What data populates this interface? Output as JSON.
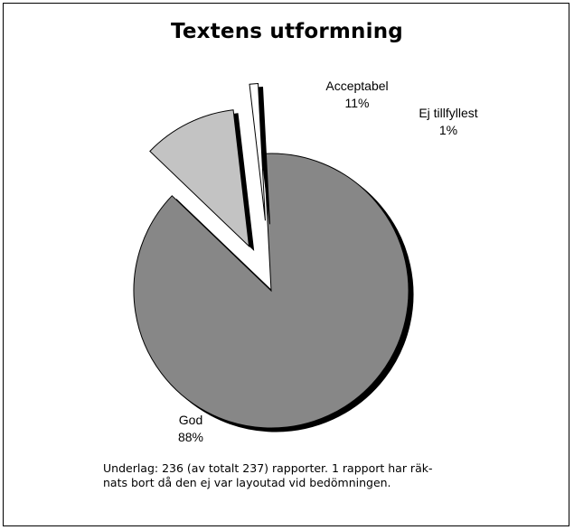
{
  "chart_data": {
    "type": "pie",
    "title": "Textens utformning",
    "slices": [
      {
        "label": "God",
        "value": 88,
        "value_label": "88%",
        "color": "#878787",
        "exploded": false
      },
      {
        "label": "Acceptabel",
        "value": 11,
        "value_label": "11%",
        "color": "#c3c3c3",
        "exploded": true
      },
      {
        "label": "Ej tillfyllest",
        "value": 1,
        "value_label": "1%",
        "color": "#ffffff",
        "exploded": true
      }
    ],
    "style": "3d-shadow, exploded minor slices",
    "legend": "none (direct labels)"
  },
  "footnote_lines": [
    "Underlag: 236 (av totalt 237) rapporter. 1 rapport har räk-",
    "nats bort då den ej var layoutad vid bedömningen."
  ]
}
